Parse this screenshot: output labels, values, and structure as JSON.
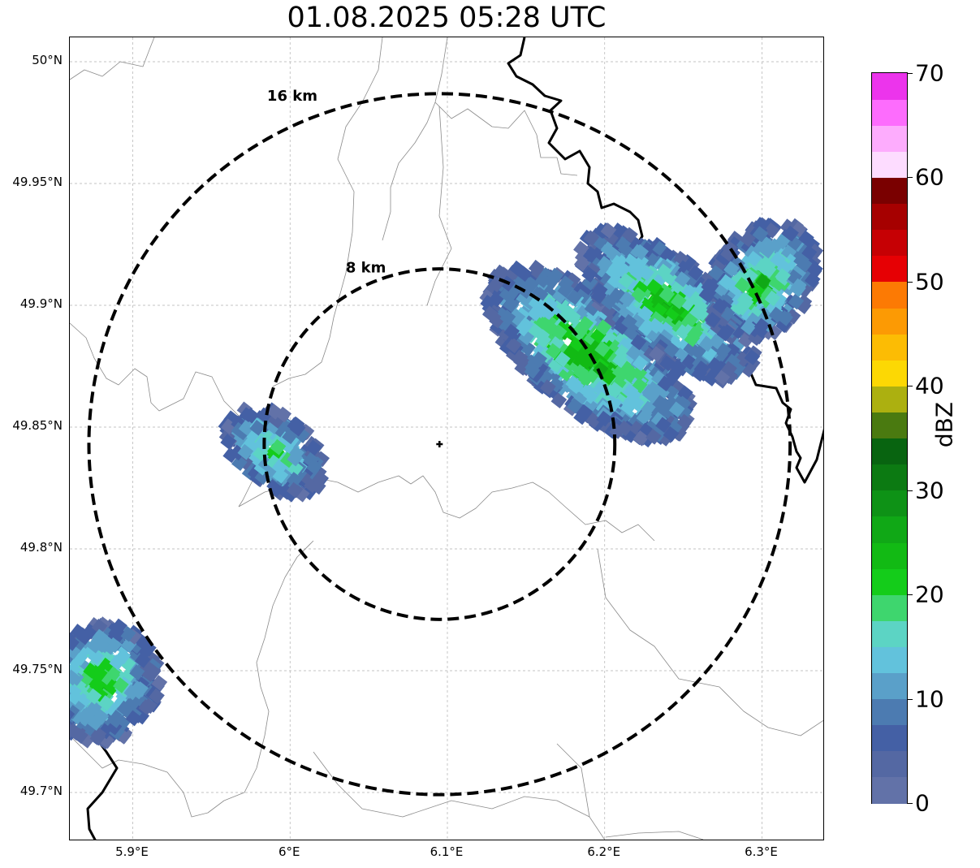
{
  "title": "01.08.2025 05:28 UTC",
  "map": {
    "lon_range": [
      5.86,
      6.34
    ],
    "lat_range": [
      49.68,
      50.01
    ],
    "gridlines": true,
    "radar_site": {
      "lon": 6.095,
      "lat": 49.843
    },
    "lat_ticks": [
      {
        "value": 50.0,
        "label": "50°N"
      },
      {
        "value": 49.95,
        "label": "49.95°N"
      },
      {
        "value": 49.9,
        "label": "49.9°N"
      },
      {
        "value": 49.85,
        "label": "49.85°N"
      },
      {
        "value": 49.8,
        "label": "49.8°N"
      },
      {
        "value": 49.75,
        "label": "49.75°N"
      },
      {
        "value": 49.7,
        "label": "49.7°N"
      }
    ],
    "lon_ticks": [
      {
        "value": 5.9,
        "label": "5.9°E"
      },
      {
        "value": 6.0,
        "label": "6°E"
      },
      {
        "value": 6.1,
        "label": "6.1°E"
      },
      {
        "value": 6.2,
        "label": "6.2°E"
      },
      {
        "value": 6.3,
        "label": "6.3°E"
      }
    ],
    "range_rings": [
      {
        "label": "8 km",
        "radius_km": 8
      },
      {
        "label": "16 km",
        "radius_km": 16
      }
    ],
    "echo_cells": [
      {
        "lon": 5.99,
        "lat": 49.84,
        "max_dbz": 22
      },
      {
        "lon": 6.19,
        "lat": 49.88,
        "max_dbz": 27
      },
      {
        "lon": 6.24,
        "lat": 49.9,
        "max_dbz": 25
      },
      {
        "lon": 6.3,
        "lat": 49.91,
        "max_dbz": 24
      },
      {
        "lon": 5.88,
        "lat": 49.745,
        "max_dbz": 24
      }
    ]
  },
  "colorbar": {
    "label": "dBZ",
    "min": 0,
    "max": 70,
    "ticks": [
      {
        "value": 0,
        "label": "0"
      },
      {
        "value": 10,
        "label": "10"
      },
      {
        "value": 20,
        "label": "20"
      },
      {
        "value": 30,
        "label": "30"
      },
      {
        "value": 40,
        "label": "40"
      },
      {
        "value": 50,
        "label": "50"
      },
      {
        "value": 60,
        "label": "60"
      },
      {
        "value": 70,
        "label": "70"
      }
    ],
    "colors": [
      "#6272a8",
      "#5468a3",
      "#4460a5",
      "#4c7bb1",
      "#5aa0c9",
      "#62c2dc",
      "#5cd4c4",
      "#3ed66e",
      "#14cc1a",
      "#12ba14",
      "#10a816",
      "#0e9216",
      "#0c7a12",
      "#086410",
      "#4a7a10",
      "#acb010",
      "#fcd804",
      "#fcbc04",
      "#fc9a04",
      "#fc7a04",
      "#e60004",
      "#c60004",
      "#a60000",
      "#7a0000",
      "#fddcff",
      "#fdacfd",
      "#fd6cfd",
      "#ec34ec"
    ]
  }
}
